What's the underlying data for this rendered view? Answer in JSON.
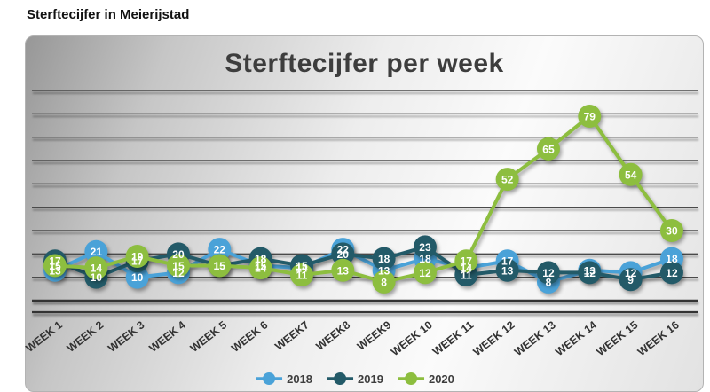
{
  "page": {
    "header": "Sterftecijfer in Meierijstad"
  },
  "chart_data": {
    "type": "line",
    "title": "Sterftecijfer per week",
    "categories": [
      "WEEK 1",
      "WEEK 2",
      "WEEK 3",
      "WEEK 4",
      "WEEK 5",
      "WEEK 6",
      "WEEK7",
      "WEEK8",
      "WEEK9",
      "WEEK 10",
      "WEEK 11",
      "WEEK 12",
      "WEEK 13",
      "WEEK 14",
      "WEEK 15",
      "WEEK 16"
    ],
    "series": [
      {
        "name": "2018",
        "color": "#4aa2d8",
        "values": [
          13,
          21,
          10,
          12,
          22,
          15,
          14,
          22,
          13,
          18,
          14,
          17,
          8,
          13,
          12,
          18
        ]
      },
      {
        "name": "2019",
        "color": "#235a68",
        "values": [
          17,
          10,
          17,
          20,
          15,
          18,
          15,
          20,
          18,
          23,
          11,
          13,
          12,
          12,
          9,
          12
        ]
      },
      {
        "name": "2020",
        "color": "#8dbe3f",
        "values": [
          15,
          14,
          19,
          15,
          15,
          14,
          11,
          13,
          8,
          12,
          17,
          52,
          65,
          79,
          54,
          30
        ]
      }
    ],
    "ylim": [
      0,
      90
    ],
    "y_major": 10,
    "y_axis_labels_visible": false,
    "grid": "horizontal",
    "legend_position": "bottom",
    "data_labels": true,
    "xlabel": "",
    "ylabel": ""
  },
  "style": {
    "grid_color": "#4a4a4a",
    "axis_color": "#333333",
    "title_color": "#3d3d3d",
    "label_color": "#333333"
  }
}
